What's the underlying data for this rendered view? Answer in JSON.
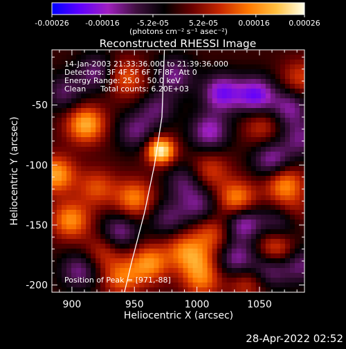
{
  "colorbar": {
    "ticks": [
      "-0.00026",
      "-0.00016",
      "-5.2e-05",
      "5.2e-05",
      "0.00016",
      "0.00026"
    ],
    "tick_values": [
      -0.00026,
      -0.00016,
      -5.2e-05,
      5.2e-05,
      0.00016,
      0.00026
    ],
    "range": [
      -0.00026,
      0.00026
    ],
    "unit_label": "(photons cm⁻² s⁻¹ asec⁻²)"
  },
  "annotations": {
    "time_range": "14-Jan-2003 21:33:36.000 to 21:39:36.000",
    "detectors": "Detectors: 3F 4F 5F 6F 7F 8F, Att 0",
    "energy_range": "Energy Range: 25.0 - 50.0 keV",
    "method": "Clean      Total counts: 6.20E+03",
    "peak": "Position of Peak = [971,-88]"
  },
  "footer": {
    "timestamp": "28-Apr-2022 02:52"
  },
  "chart_data": {
    "type": "heatmap",
    "title": "Reconstructed RHESSI Image",
    "xlabel": "Heliocentric X (arcsec)",
    "ylabel": "Heliocentric Y (arcsec)",
    "xlim": [
      884,
      1086
    ],
    "ylim": [
      -206,
      -4
    ],
    "xticks": [
      900,
      950,
      1000,
      1050
    ],
    "yticks": [
      -50,
      -100,
      -150,
      -200
    ],
    "colormap": [
      "#0000ff",
      "#6000ff",
      "#a020c0",
      "#401040",
      "#000000",
      "#6a0000",
      "#c82800",
      "#ff7800",
      "#ffc040",
      "#ffffe8"
    ],
    "peak_position": [
      971,
      -88
    ],
    "peak_value": 0.00026,
    "sources": [
      {
        "x": 971,
        "y": -88,
        "value": 0.00026
      },
      {
        "x": 911,
        "y": -66,
        "value": 0.00019
      },
      {
        "x": 887,
        "y": -108,
        "value": 0.00018
      },
      {
        "x": 899,
        "y": -146,
        "value": 0.00016
      },
      {
        "x": 950,
        "y": -128,
        "value": 0.00015
      },
      {
        "x": 962,
        "y": -182,
        "value": 0.00016
      },
      {
        "x": 1032,
        "y": -129,
        "value": 0.00017
      },
      {
        "x": 1070,
        "y": -116,
        "value": 0.00016
      },
      {
        "x": 1063,
        "y": -170,
        "value": 0.00014
      },
      {
        "x": 940,
        "y": -194,
        "value": 0.00013
      },
      {
        "x": 1004,
        "y": -196,
        "value": 0.00012
      },
      {
        "x": 1012,
        "y": -157,
        "value": 0.00011
      },
      {
        "x": 942,
        "y": -27,
        "value": 0.00012
      },
      {
        "x": 1010,
        "y": -105,
        "value": 0.0001
      },
      {
        "x": 989,
        "y": -170,
        "value": 0.00011
      },
      {
        "x": 920,
        "y": -119,
        "value": 0.00011
      },
      {
        "x": 1052,
        "y": -67,
        "value": 9e-05
      },
      {
        "x": 1083,
        "y": -28,
        "value": 0.0001
      },
      {
        "x": 925,
        "y": -172,
        "value": 9e-05
      },
      {
        "x": 1000,
        "y": -180,
        "value": 0.0001
      },
      {
        "x": 1040,
        "y": -197,
        "value": 0.0001
      },
      {
        "x": 962,
        "y": -45,
        "value": 8e-05
      },
      {
        "x": 1075,
        "y": -140,
        "value": 9e-05
      },
      {
        "x": 966,
        "y": -50,
        "value": -0.00016
      },
      {
        "x": 1020,
        "y": -40,
        "value": -0.00018
      },
      {
        "x": 1010,
        "y": -72,
        "value": -0.00015
      },
      {
        "x": 1047,
        "y": -42,
        "value": -0.00019
      },
      {
        "x": 1074,
        "y": -52,
        "value": -0.00013
      },
      {
        "x": 1060,
        "y": -96,
        "value": -0.00014
      },
      {
        "x": 1068,
        "y": -147,
        "value": -0.00013
      },
      {
        "x": 1037,
        "y": -148,
        "value": -0.00016
      },
      {
        "x": 1058,
        "y": -187,
        "value": -0.00013
      },
      {
        "x": 1032,
        "y": -179,
        "value": -0.00014
      },
      {
        "x": 938,
        "y": -156,
        "value": -0.00013
      },
      {
        "x": 920,
        "y": -23,
        "value": -0.00012
      },
      {
        "x": 951,
        "y": -72,
        "value": -0.00011
      },
      {
        "x": 982,
        "y": -25,
        "value": -0.00012
      },
      {
        "x": 1002,
        "y": -134,
        "value": -0.00011
      },
      {
        "x": 906,
        "y": -188,
        "value": -0.00012
      },
      {
        "x": 990,
        "y": -114,
        "value": -0.0001
      },
      {
        "x": 1083,
        "y": -183,
        "value": -0.00011
      },
      {
        "x": 894,
        "y": -40,
        "value": -0.0001
      },
      {
        "x": 1083,
        "y": -78,
        "value": -0.00011
      },
      {
        "x": 977,
        "y": -145,
        "value": -0.0001
      }
    ],
    "limb": [
      {
        "x": 974,
        "y": -4
      },
      {
        "x": 972,
        "y": -60
      },
      {
        "x": 966,
        "y": -100
      },
      {
        "x": 958,
        "y": -140
      },
      {
        "x": 948,
        "y": -180
      },
      {
        "x": 942,
        "y": -206
      }
    ]
  }
}
